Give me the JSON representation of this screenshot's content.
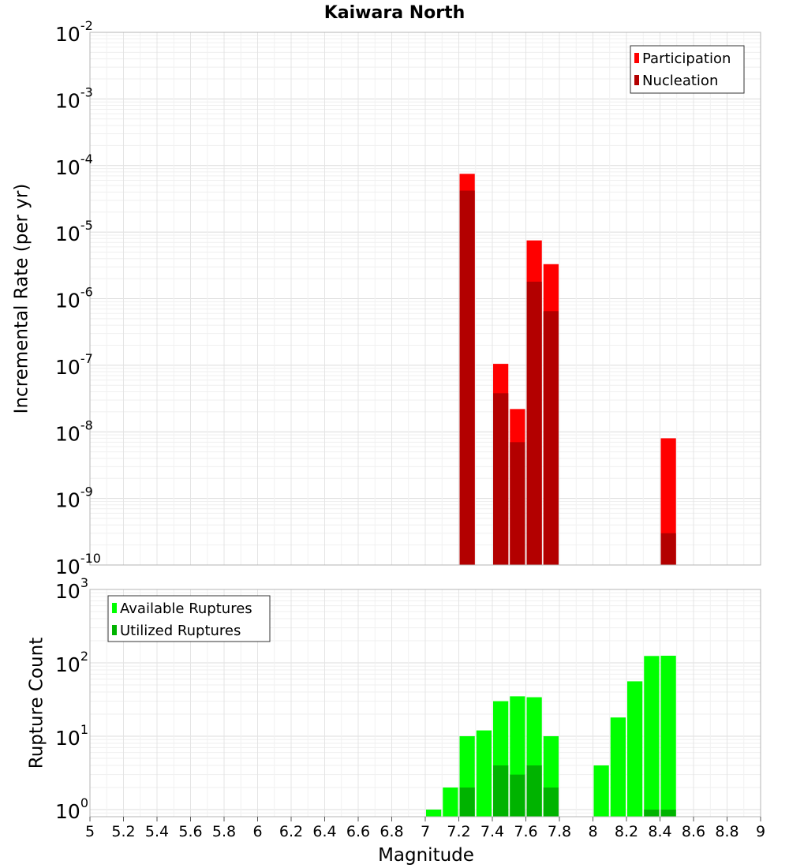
{
  "title": "Kaiwara North",
  "chart_data": [
    {
      "type": "bar",
      "panel": "top",
      "yscale": "log",
      "ylabel": "Incremental Rate (per yr)",
      "xlabel": "Magnitude",
      "xlim": [
        5,
        9
      ],
      "ylim": [
        1e-10,
        0.01
      ],
      "bin_width": 0.1,
      "yticks": [
        {
          "value": 1e-10,
          "exp": "-10"
        },
        {
          "value": 1e-09,
          "exp": "-9"
        },
        {
          "value": 1e-08,
          "exp": "-8"
        },
        {
          "value": 1e-07,
          "exp": "-7"
        },
        {
          "value": 1e-06,
          "exp": "-6"
        },
        {
          "value": 1e-05,
          "exp": "-5"
        },
        {
          "value": 0.0001,
          "exp": "-4"
        },
        {
          "value": 0.001,
          "exp": "-3"
        },
        {
          "value": 0.01,
          "exp": "-2"
        }
      ],
      "legend_position": "top-right",
      "series": [
        {
          "name": "Participation",
          "color": "#ff0000",
          "points": [
            [
              7.25,
              7.5e-05
            ],
            [
              7.45,
              1.05e-07
            ],
            [
              7.55,
              2.2e-08
            ],
            [
              7.65,
              7.5e-06
            ],
            [
              7.75,
              3.3e-06
            ],
            [
              8.45,
              8e-09
            ]
          ]
        },
        {
          "name": "Nucleation",
          "color": "#b30000",
          "points": [
            [
              7.25,
              4.2e-05
            ],
            [
              7.45,
              3.8e-08
            ],
            [
              7.55,
              7e-09
            ],
            [
              7.65,
              1.8e-06
            ],
            [
              7.75,
              6.5e-07
            ],
            [
              8.45,
              3e-10
            ]
          ]
        }
      ]
    },
    {
      "type": "bar",
      "panel": "bottom",
      "yscale": "log",
      "ylabel": "Rupture Count",
      "xlabel": "Magnitude",
      "xlim": [
        5,
        9
      ],
      "ylim": [
        0.8,
        1000
      ],
      "bin_width": 0.1,
      "yticks": [
        {
          "value": 1,
          "exp": "0"
        },
        {
          "value": 10,
          "exp": "1"
        },
        {
          "value": 100,
          "exp": "2"
        },
        {
          "value": 1000,
          "exp": "3"
        }
      ],
      "legend_position": "top-left",
      "series": [
        {
          "name": "Available Ruptures",
          "color": "#00ff00",
          "points": [
            [
              7.05,
              1
            ],
            [
              7.15,
              2
            ],
            [
              7.25,
              10
            ],
            [
              7.35,
              12
            ],
            [
              7.45,
              30
            ],
            [
              7.55,
              35
            ],
            [
              7.65,
              34
            ],
            [
              7.75,
              10
            ],
            [
              8.05,
              4
            ],
            [
              8.15,
              18
            ],
            [
              8.25,
              56
            ],
            [
              8.35,
              124
            ],
            [
              8.45,
              125
            ]
          ]
        },
        {
          "name": "Utilized Ruptures",
          "color": "#00b300",
          "points": [
            [
              7.25,
              2
            ],
            [
              7.45,
              4
            ],
            [
              7.55,
              3
            ],
            [
              7.65,
              4
            ],
            [
              7.75,
              2
            ],
            [
              8.35,
              1
            ],
            [
              8.45,
              1
            ]
          ]
        }
      ]
    }
  ],
  "xticks": [
    "5",
    "5.2",
    "5.4",
    "5.6",
    "5.8",
    "6",
    "6.2",
    "6.4",
    "6.6",
    "6.8",
    "7",
    "7.2",
    "7.4",
    "7.6",
    "7.8",
    "8",
    "8.2",
    "8.4",
    "8.6",
    "8.8",
    "9"
  ],
  "ylog_base": "10"
}
